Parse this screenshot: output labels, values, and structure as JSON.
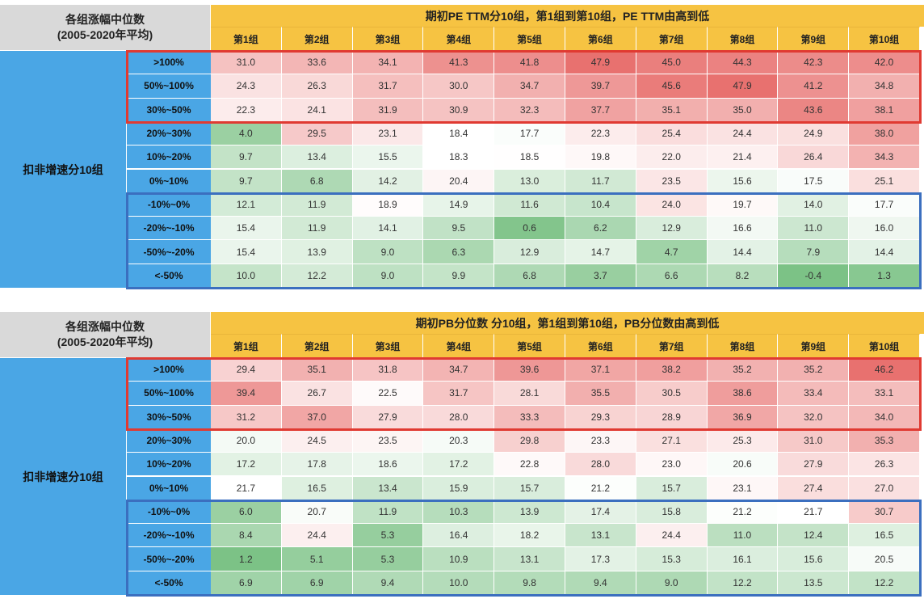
{
  "colors": {
    "title_bg": "#f6c342",
    "row_bg": "#4aa6e5",
    "corner_bg": "#d9d9d9",
    "top_box": "#e03a32",
    "bottom_box": "#3b6fbf",
    "high": "#e8716f",
    "mid": "#ffffff",
    "low": "#7cc286"
  },
  "chart_data": [
    {
      "type": "heatmap",
      "corner_line1": "各组涨幅中位数",
      "corner_line2": "(2005-2020年平均)",
      "title": "期初PE TTM分10组，第1组到第10组，PE TTM由高到低",
      "row_group_label": "扣非增速分10组",
      "columns": [
        "第1组",
        "第2组",
        "第3组",
        "第4组",
        "第5组",
        "第6组",
        "第7组",
        "第8组",
        "第9组",
        "第10组"
      ],
      "rows": [
        ">100%",
        "50%~100%",
        "30%~50%",
        "20%~30%",
        "10%~20%",
        "0%~10%",
        "-10%~0%",
        "-20%~-10%",
        "-50%~-20%",
        "<-50%"
      ],
      "values": [
        [
          31.0,
          33.6,
          34.1,
          41.3,
          41.8,
          47.9,
          45.0,
          44.3,
          42.3,
          42.0
        ],
        [
          24.3,
          26.3,
          31.7,
          30.0,
          34.7,
          39.7,
          45.6,
          47.9,
          41.2,
          34.8
        ],
        [
          22.3,
          24.1,
          31.9,
          30.9,
          32.3,
          37.7,
          35.1,
          35.0,
          43.6,
          38.1
        ],
        [
          4.0,
          29.5,
          23.1,
          18.4,
          17.7,
          22.3,
          25.4,
          24.4,
          24.9,
          38.0
        ],
        [
          9.7,
          13.4,
          15.5,
          18.3,
          18.5,
          19.8,
          22.0,
          21.4,
          26.4,
          34.3
        ],
        [
          9.7,
          6.8,
          14.2,
          20.4,
          13.0,
          11.7,
          23.5,
          15.6,
          17.5,
          25.1
        ],
        [
          12.1,
          11.9,
          18.9,
          14.9,
          11.6,
          10.4,
          24.0,
          19.7,
          14.0,
          17.7
        ],
        [
          15.4,
          11.9,
          14.1,
          9.5,
          0.6,
          6.2,
          12.9,
          16.6,
          11.0,
          16.0
        ],
        [
          15.4,
          13.9,
          9.0,
          6.3,
          12.9,
          14.7,
          4.7,
          14.4,
          7.9,
          14.4
        ],
        [
          10.0,
          12.2,
          9.0,
          9.9,
          6.8,
          3.7,
          6.6,
          8.2,
          -0.4,
          1.3
        ]
      ],
      "value_format": "1 decimal"
    },
    {
      "type": "heatmap",
      "corner_line1": "各组涨幅中位数",
      "corner_line2": "(2005-2020年平均)",
      "title": "期初PB分位数 分10组，第1组到第10组，PB分位数由高到低",
      "row_group_label": "扣非增速分10组",
      "columns": [
        "第1组",
        "第2组",
        "第3组",
        "第4组",
        "第5组",
        "第6组",
        "第7组",
        "第8组",
        "第9组",
        "第10组"
      ],
      "rows": [
        ">100%",
        "50%~100%",
        "30%~50%",
        "20%~30%",
        "10%~20%",
        "0%~10%",
        "-10%~0%",
        "-20%~-10%",
        "-50%~-20%",
        "<-50%"
      ],
      "values": [
        [
          29.4,
          35.1,
          31.8,
          34.7,
          39.6,
          37.1,
          38.2,
          35.2,
          35.2,
          46.2
        ],
        [
          39.4,
          26.7,
          22.5,
          31.7,
          28.1,
          35.5,
          30.5,
          38.6,
          33.4,
          33.1
        ],
        [
          31.2,
          37.0,
          27.9,
          28.0,
          33.3,
          29.3,
          28.9,
          36.9,
          32.0,
          34.0
        ],
        [
          20.0,
          24.5,
          23.5,
          20.3,
          29.8,
          23.3,
          27.1,
          25.3,
          31.0,
          35.3
        ],
        [
          17.2,
          17.8,
          18.6,
          17.2,
          22.8,
          28.0,
          23.0,
          20.6,
          27.9,
          26.3
        ],
        [
          21.7,
          16.5,
          13.4,
          15.9,
          15.7,
          21.2,
          15.7,
          23.1,
          27.4,
          27.0
        ],
        [
          6.0,
          20.7,
          11.9,
          10.3,
          13.9,
          17.4,
          15.8,
          21.2,
          21.7,
          30.7
        ],
        [
          8.4,
          24.4,
          5.3,
          16.4,
          18.2,
          13.1,
          24.4,
          11.0,
          12.4,
          16.5
        ],
        [
          1.2,
          5.1,
          5.3,
          10.9,
          13.1,
          17.3,
          15.3,
          16.1,
          15.6,
          20.5
        ],
        [
          6.9,
          6.9,
          9.4,
          10.0,
          9.8,
          9.4,
          9.0,
          12.2,
          13.5,
          12.2
        ]
      ],
      "value_format": "1 decimal"
    }
  ]
}
